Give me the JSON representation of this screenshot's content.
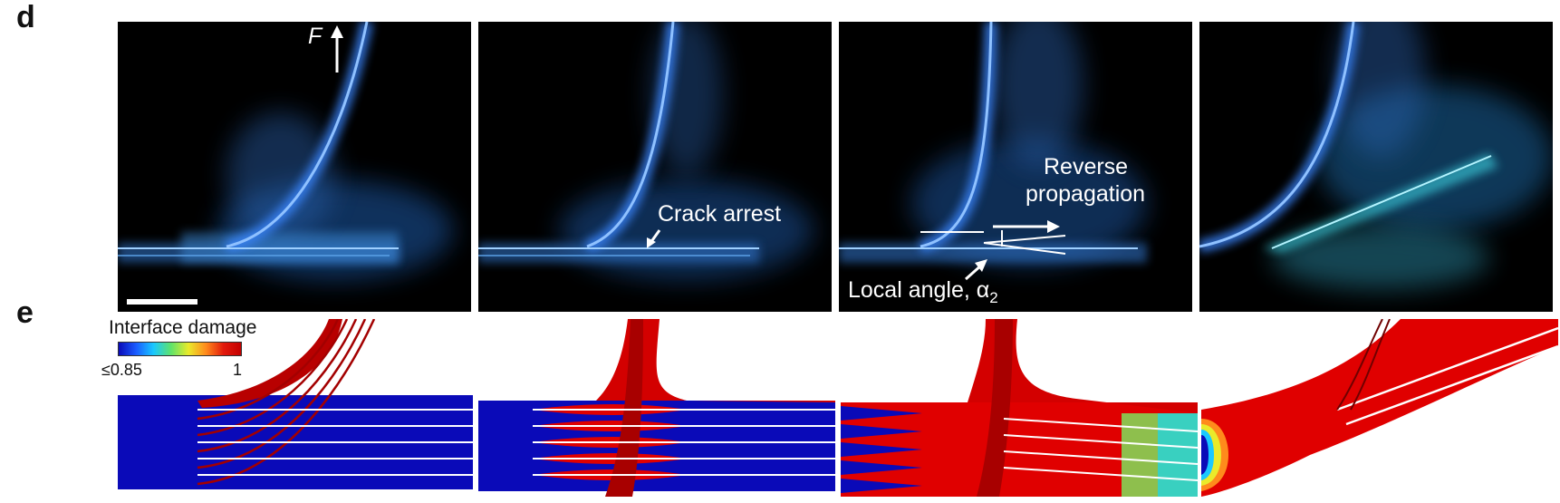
{
  "panel_d": {
    "letter": "d",
    "frames": [
      {
        "annotations": [
          {
            "text": "F",
            "italic": true
          }
        ]
      },
      {
        "annotations": [
          {
            "text": "Crack arrest"
          }
        ]
      },
      {
        "annotations": [
          {
            "text": "Reverse"
          },
          {
            "text": "propagation"
          },
          {
            "text": "Local angle, α",
            "subscript": "2"
          }
        ]
      },
      {
        "annotations": []
      }
    ]
  },
  "panel_e": {
    "letter": "e",
    "legend": {
      "title": "Interface damage",
      "min_label": "≤0.85",
      "max_label": "1"
    }
  },
  "colors": {
    "damage_low": "#0a0ab8",
    "damage_high": "#e00000",
    "glow": "#2a7cff",
    "background_photo": "#000000"
  }
}
